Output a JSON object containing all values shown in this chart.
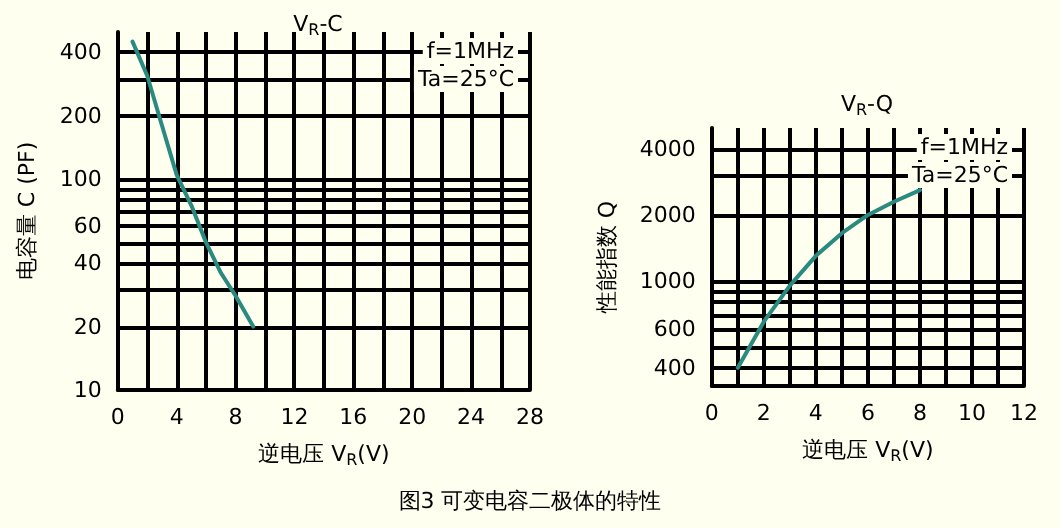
{
  "chart_data": [
    {
      "type": "line",
      "title": "V$_{R}$-C",
      "xlabel": "逆电压 V$_{R}$(V)",
      "ylabel": "电容量 C (PF)",
      "log": "y",
      "grid": true,
      "marker": "none",
      "line_style": "solid",
      "x": [
        1,
        2,
        3,
        4,
        5,
        6,
        7,
        8,
        9.2
      ],
      "series": [
        {
          "color": "#2a8a80",
          "values": [
            450,
            310,
            180,
            105,
            75,
            50,
            36,
            28,
            20
          ]
        }
      ],
      "xlim": [
        0,
        28
      ],
      "xticks": [
        0,
        {
          "value": 2,
          "label": null
        },
        4,
        {
          "value": 6,
          "label": null
        },
        8,
        {
          "value": 10,
          "label": null
        },
        12,
        {
          "value": 14,
          "label": null
        },
        16,
        {
          "value": 18,
          "label": null
        },
        20,
        {
          "value": 22,
          "label": null
        },
        24,
        {
          "value": 26,
          "label": null
        },
        28
      ],
      "ylim": [
        10,
        500
      ],
      "yticks": [
        10,
        20,
        {
          "value": 30,
          "label": null
        },
        40,
        {
          "value": 50,
          "label": null
        },
        60,
        {
          "value": 70,
          "label": null
        },
        {
          "value": 80,
          "label": null
        },
        {
          "value": 90,
          "label": null
        },
        100,
        200,
        {
          "value": 300,
          "label": null
        },
        400
      ],
      "annotations": [
        "f=1MHz",
        "Ta=25°C",
        "图3 可变电容二极体的特性"
      ]
    },
    {
      "type": "line",
      "title": "V$_{R}$-Q",
      "xlabel": "逆电压 V$_{R}$(V)",
      "ylabel": "性能指数 Q",
      "log": "y",
      "grid": true,
      "marker": "none",
      "line_style": "solid",
      "x": [
        1,
        2,
        3,
        4,
        5,
        6,
        7,
        8
      ],
      "series": [
        {
          "color": "#2a8a80",
          "values": [
            400,
            650,
            950,
            1300,
            1650,
            2000,
            2300,
            2600
          ]
        }
      ],
      "xlim": [
        0,
        12
      ],
      "xticks": [
        0,
        {
          "value": 1,
          "label": null
        },
        2,
        {
          "value": 3,
          "label": null
        },
        4,
        {
          "value": 5,
          "label": null
        },
        6,
        {
          "value": 7,
          "label": null
        },
        8,
        {
          "value": 9,
          "label": null
        },
        10,
        {
          "value": 11,
          "label": null
        },
        12
      ],
      "ylim": [
        330,
        5000
      ],
      "yticks": [
        400,
        {
          "value": 500,
          "label": null
        },
        600,
        {
          "value": 700,
          "label": null
        },
        {
          "value": 800,
          "label": null
        },
        {
          "value": 900,
          "label": null
        },
        1000,
        2000,
        {
          "value": 3000,
          "label": null
        },
        4000
      ],
      "annotations": [
        "f=1MHz",
        "Ta=25°C"
      ]
    }
  ]
}
